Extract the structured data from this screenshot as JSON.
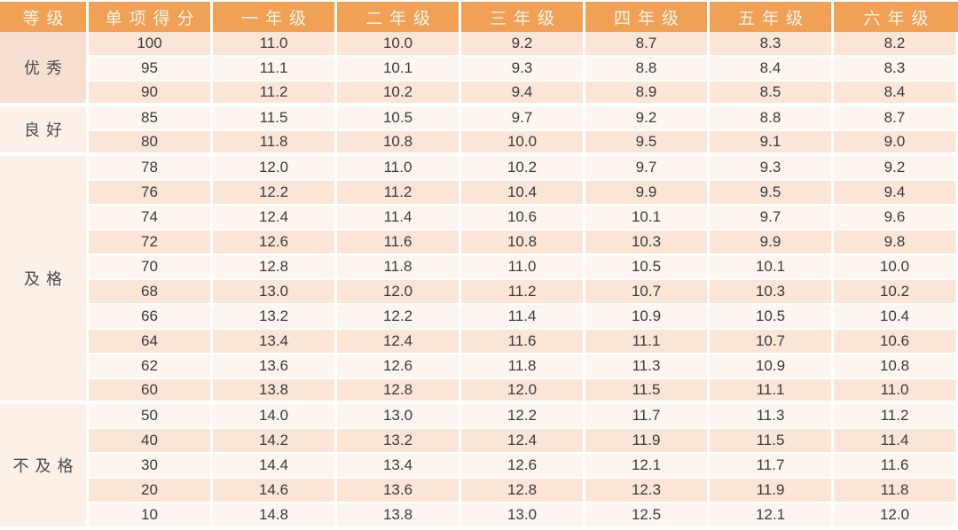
{
  "chart_data": {
    "type": "table",
    "columns": [
      "等级",
      "单项得分",
      "一年级",
      "二年级",
      "三年级",
      "四年级",
      "五年级",
      "六年级"
    ],
    "groups": [
      {
        "grade": "优秀",
        "rows": [
          {
            "score": "100",
            "values": [
              "11.0",
              "10.0",
              "9.2",
              "8.7",
              "8.3",
              "8.2"
            ]
          },
          {
            "score": "95",
            "values": [
              "11.1",
              "10.1",
              "9.3",
              "8.8",
              "8.4",
              "8.3"
            ]
          },
          {
            "score": "90",
            "values": [
              "11.2",
              "10.2",
              "9.4",
              "8.9",
              "8.5",
              "8.4"
            ]
          }
        ]
      },
      {
        "grade": "良好",
        "rows": [
          {
            "score": "85",
            "values": [
              "11.5",
              "10.5",
              "9.7",
              "9.2",
              "8.8",
              "8.7"
            ]
          },
          {
            "score": "80",
            "values": [
              "11.8",
              "10.8",
              "10.0",
              "9.5",
              "9.1",
              "9.0"
            ]
          }
        ]
      },
      {
        "grade": "及格",
        "rows": [
          {
            "score": "78",
            "values": [
              "12.0",
              "11.0",
              "10.2",
              "9.7",
              "9.3",
              "9.2"
            ]
          },
          {
            "score": "76",
            "values": [
              "12.2",
              "11.2",
              "10.4",
              "9.9",
              "9.5",
              "9.4"
            ]
          },
          {
            "score": "74",
            "values": [
              "12.4",
              "11.4",
              "10.6",
              "10.1",
              "9.7",
              "9.6"
            ]
          },
          {
            "score": "72",
            "values": [
              "12.6",
              "11.6",
              "10.8",
              "10.3",
              "9.9",
              "9.8"
            ]
          },
          {
            "score": "70",
            "values": [
              "12.8",
              "11.8",
              "11.0",
              "10.5",
              "10.1",
              "10.0"
            ]
          },
          {
            "score": "68",
            "values": [
              "13.0",
              "12.0",
              "11.2",
              "10.7",
              "10.3",
              "10.2"
            ]
          },
          {
            "score": "66",
            "values": [
              "13.2",
              "12.2",
              "11.4",
              "10.9",
              "10.5",
              "10.4"
            ]
          },
          {
            "score": "64",
            "values": [
              "13.4",
              "12.4",
              "11.6",
              "11.1",
              "10.7",
              "10.6"
            ]
          },
          {
            "score": "62",
            "values": [
              "13.6",
              "12.6",
              "11.8",
              "11.3",
              "10.9",
              "10.8"
            ]
          },
          {
            "score": "60",
            "values": [
              "13.8",
              "12.8",
              "12.0",
              "11.5",
              "11.1",
              "11.0"
            ]
          }
        ]
      },
      {
        "grade": "不及格",
        "rows": [
          {
            "score": "50",
            "values": [
              "14.0",
              "13.0",
              "12.2",
              "11.7",
              "11.3",
              "11.2"
            ]
          },
          {
            "score": "40",
            "values": [
              "14.2",
              "13.2",
              "12.4",
              "11.9",
              "11.5",
              "11.4"
            ]
          },
          {
            "score": "30",
            "values": [
              "14.4",
              "13.4",
              "12.6",
              "12.1",
              "11.7",
              "11.6"
            ]
          },
          {
            "score": "20",
            "values": [
              "14.6",
              "13.6",
              "12.8",
              "12.3",
              "11.9",
              "11.8"
            ]
          },
          {
            "score": "10",
            "values": [
              "14.8",
              "13.8",
              "13.0",
              "12.5",
              "12.1",
              "12.0"
            ]
          }
        ]
      }
    ]
  },
  "colors": {
    "header_bg": "#F0A156",
    "header_text": "#FDF3E8",
    "row_peach": "#FAE5D7",
    "row_cream": "#FDF6F0",
    "group_peach": "#F7DFD1",
    "group_cream": "#FBF1E9",
    "separator": "#FFFFFF",
    "cell_text": "#3B3B3B",
    "label_text": "#4B4B4B"
  }
}
